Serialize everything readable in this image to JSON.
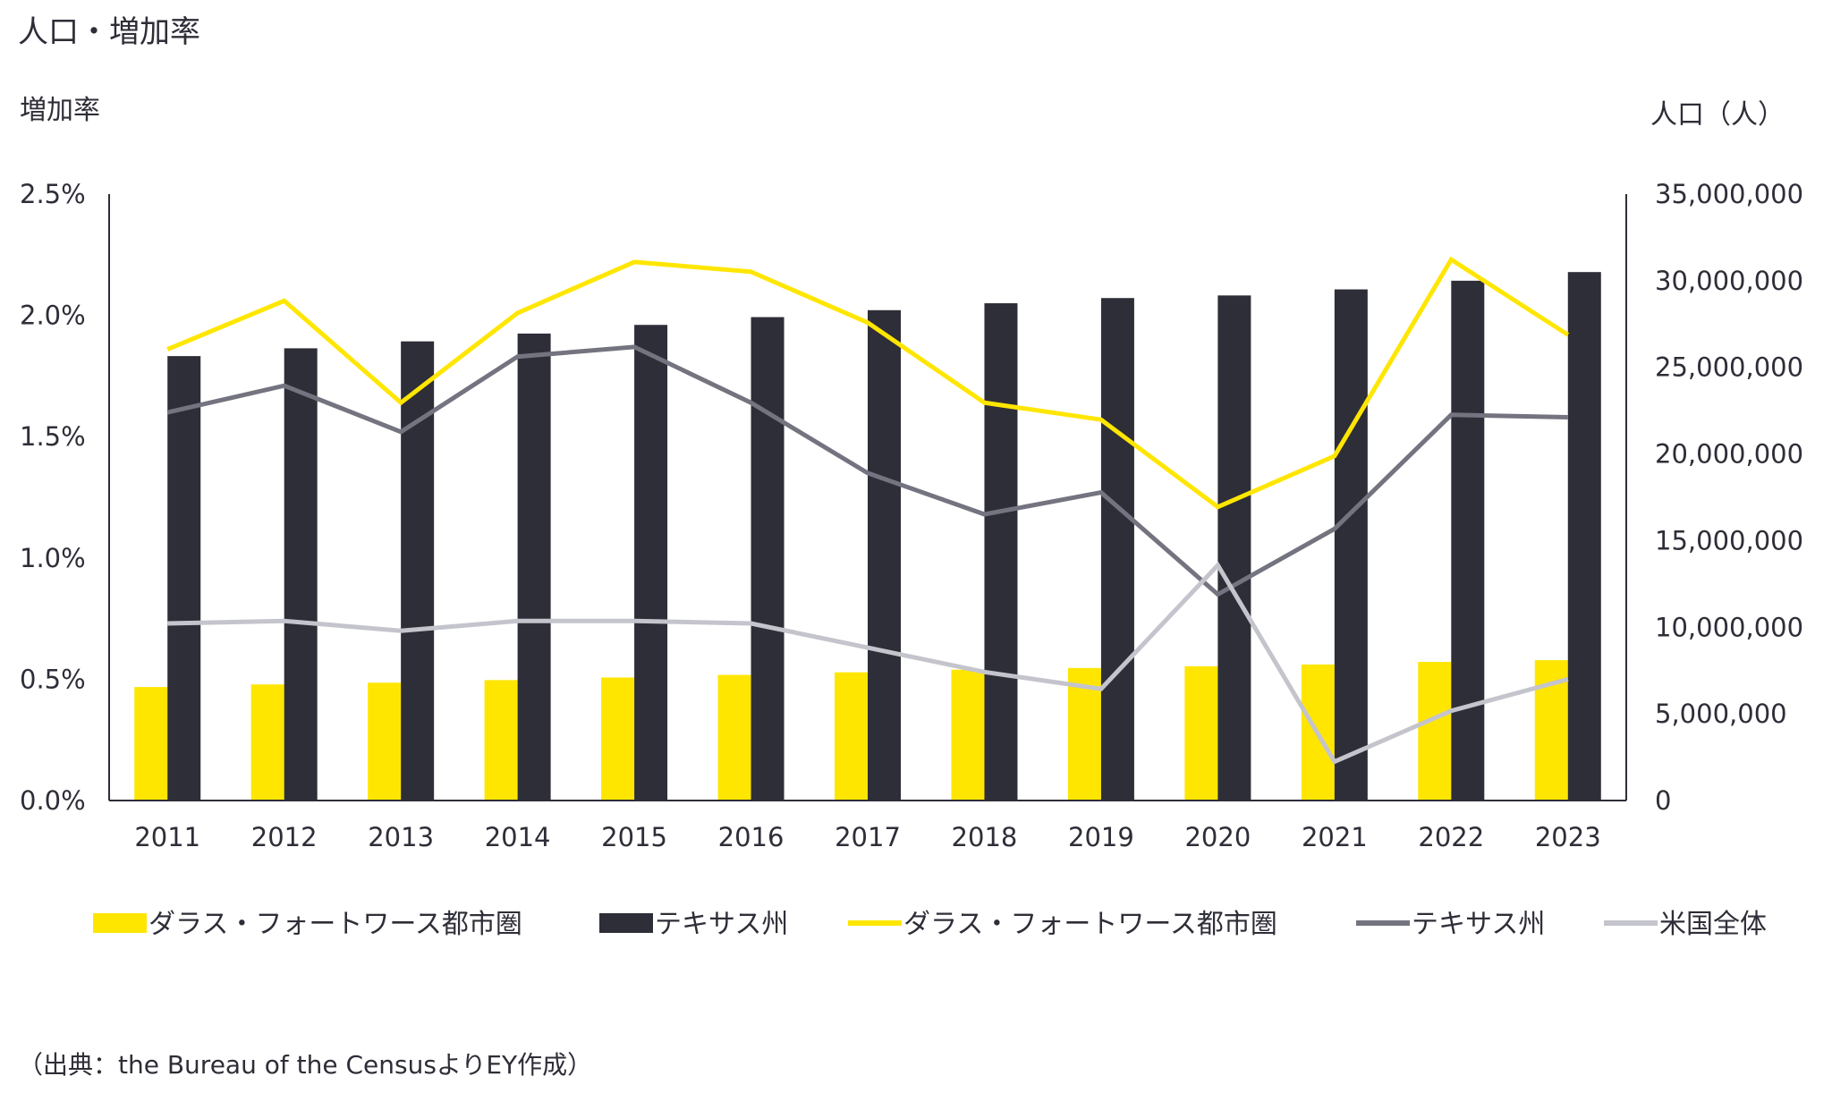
{
  "chart_data": {
    "type": "bar+line",
    "title": "人口・増加率",
    "left_axis_label": "増加率",
    "right_axis_label": "人口（人）",
    "categories": [
      "2011",
      "2012",
      "2013",
      "2014",
      "2015",
      "2016",
      "2017",
      "2018",
      "2019",
      "2020",
      "2021",
      "2022",
      "2023"
    ],
    "left_ticks": [
      "0.0%",
      "0.5%",
      "1.0%",
      "1.5%",
      "2.0%",
      "2.5%"
    ],
    "right_ticks": [
      "0",
      "5,000,000",
      "10,000,000",
      "15,000,000",
      "20,000,000",
      "25,000,000",
      "30,000,000",
      "35,000,000"
    ],
    "left_ylim": [
      0,
      2.5
    ],
    "right_ylim": [
      0,
      35000000
    ],
    "bar_series": [
      {
        "name": "ダラス・フォートワース都市圏",
        "color": "#ffe600",
        "axis": "right",
        "values": [
          6550000,
          6700000,
          6800000,
          6950000,
          7100000,
          7250000,
          7400000,
          7550000,
          7650000,
          7750000,
          7850000,
          8000000,
          8100000
        ]
      },
      {
        "name": "テキサス州",
        "color": "#2e2e38",
        "axis": "right",
        "values": [
          25650000,
          26100000,
          26500000,
          26950000,
          27450000,
          27900000,
          28300000,
          28700000,
          29000000,
          29150000,
          29500000,
          30000000,
          30500000
        ]
      }
    ],
    "line_series": [
      {
        "name": "ダラス・フォートワース都市圏",
        "color": "#ffe600",
        "axis": "left",
        "values": [
          1.86,
          2.06,
          1.64,
          2.01,
          2.22,
          2.18,
          1.97,
          1.64,
          1.57,
          1.21,
          1.42,
          2.23,
          1.92
        ]
      },
      {
        "name": "テキサス州",
        "color": "#747480",
        "axis": "left",
        "values": [
          1.6,
          1.71,
          1.52,
          1.83,
          1.87,
          1.64,
          1.35,
          1.18,
          1.27,
          0.85,
          1.12,
          1.59,
          1.58
        ]
      },
      {
        "name": "米国全体",
        "color": "#c4c4cd",
        "axis": "left",
        "values": [
          0.73,
          0.74,
          0.7,
          0.74,
          0.74,
          0.73,
          0.63,
          0.53,
          0.46,
          0.97,
          0.16,
          0.37,
          0.5
        ]
      }
    ],
    "legend": [
      {
        "label": "ダラス・フォートワース都市圏",
        "kind": "bar",
        "color": "#ffe600"
      },
      {
        "label": "テキサス州",
        "kind": "bar",
        "color": "#2e2e38"
      },
      {
        "label": "ダラス・フォートワース都市圏",
        "kind": "line",
        "color": "#ffe600"
      },
      {
        "label": "テキサス州",
        "kind": "line",
        "color": "#747480"
      },
      {
        "label": "米国全体",
        "kind": "line",
        "color": "#c4c4cd"
      }
    ],
    "legend_position": "bottom",
    "grid": false,
    "source": "（出典：the Bureau of the CensusよりEY作成）"
  }
}
